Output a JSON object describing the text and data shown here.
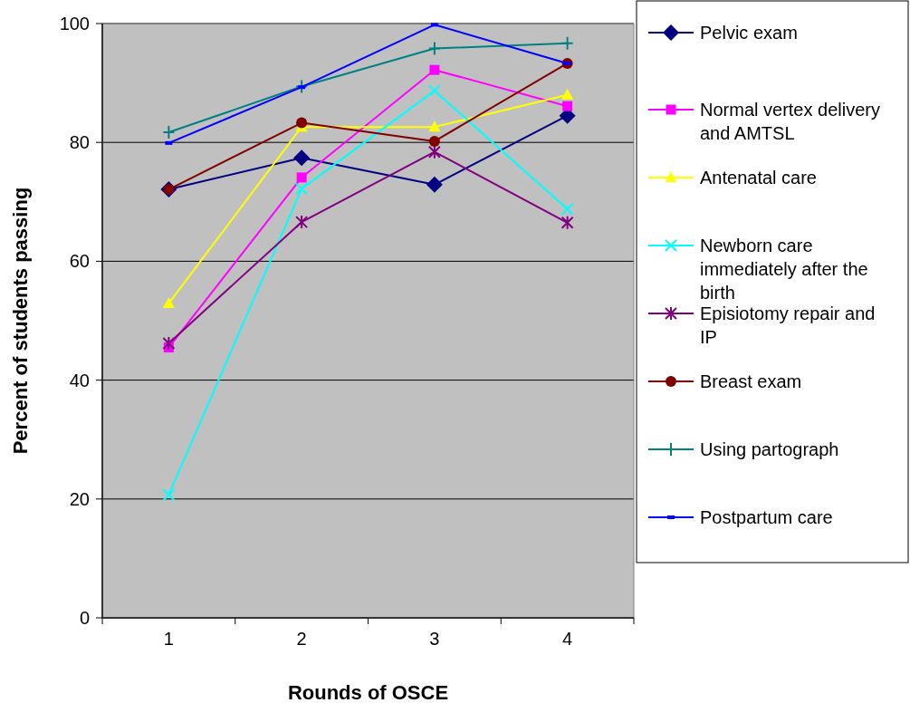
{
  "chart_data": {
    "type": "line",
    "xlabel": "Rounds of OSCE",
    "ylabel": "Percent of students passing",
    "categories": [
      "1",
      "2",
      "3",
      "4"
    ],
    "ylim": [
      0,
      100
    ],
    "yticks": [
      0,
      20,
      40,
      60,
      80,
      100
    ],
    "grid": "y",
    "legend": "right",
    "series": [
      {
        "name": "Pelvic exam",
        "color": "#000080",
        "marker": "diamond",
        "values": [
          72.1,
          77.4,
          72.9,
          84.5
        ]
      },
      {
        "name": "Normal vertex delivery and AMTSL",
        "color": "#ff00ff",
        "marker": "square",
        "values": [
          45.5,
          74.1,
          92.2,
          86.1
        ]
      },
      {
        "name": "Antenatal care",
        "color": "#ffff00",
        "marker": "triangle",
        "values": [
          52.9,
          82.6,
          82.6,
          88.0
        ]
      },
      {
        "name": "Newborn care immediately after the birth",
        "color": "#00ffff",
        "marker": "x",
        "values": [
          20.7,
          72.2,
          88.7,
          68.8
        ]
      },
      {
        "name": "Episiotomy repair and IP",
        "color": "#800080",
        "marker": "cross",
        "values": [
          46.2,
          66.6,
          78.4,
          66.5
        ]
      },
      {
        "name": "Breast exam",
        "color": "#800000",
        "marker": "circle",
        "values": [
          72.1,
          83.3,
          80.2,
          93.3
        ]
      },
      {
        "name": "Using partograph",
        "color": "#008080",
        "marker": "cross",
        "values": [
          81.7,
          89.4,
          95.8,
          96.7
        ]
      },
      {
        "name": "Postpartum care",
        "color": "#0000ff",
        "marker": "square",
        "values": [
          79.9,
          89.3,
          99.8,
          93.3
        ]
      }
    ]
  }
}
